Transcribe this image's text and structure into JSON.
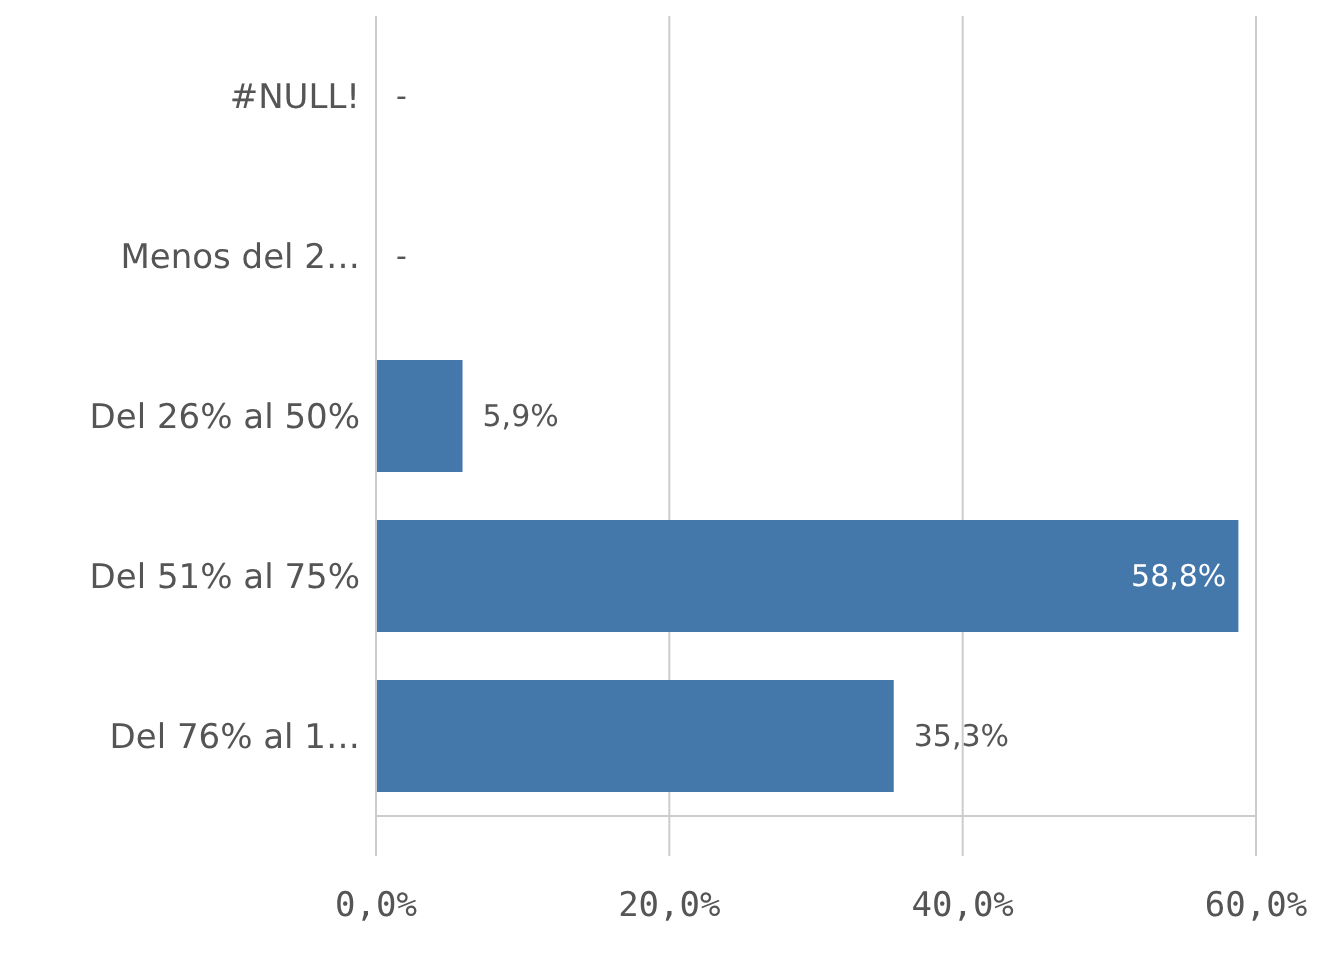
{
  "chart_data": {
    "type": "bar",
    "orientation": "horizontal",
    "categories": [
      "#NULL!",
      "Menos del 2…",
      "Del 26% al 50%",
      "Del 51% al 75%",
      "Del 76% al 1…"
    ],
    "values": [
      0,
      0,
      5.9,
      58.8,
      35.3
    ],
    "value_labels": [
      "-",
      "-",
      "5,9%",
      "58,8%",
      "35,3%"
    ],
    "color": "#4477aa",
    "xlim": [
      0,
      60
    ],
    "xticks": [
      {
        "value": 0,
        "label": "0,0%"
      },
      {
        "value": 20,
        "label": "20,0%"
      },
      {
        "value": 40,
        "label": "40,0%"
      },
      {
        "value": 60,
        "label": "60,0%"
      }
    ],
    "grid": "x"
  }
}
